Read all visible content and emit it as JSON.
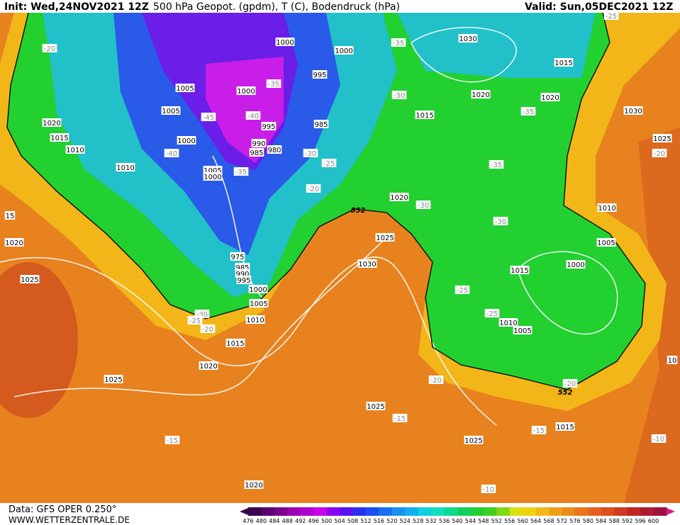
{
  "header": {
    "init": "Init: Wed,24NOV2021 12Z",
    "title": "500 hPa Geopot. (gpdm), T (C), Bodendruck (hPa)",
    "valid": "Valid: Sun,05DEC2021 12Z"
  },
  "map": {
    "labels": [
      "-20",
      "1000",
      "1000",
      "-35",
      "1030",
      "1015",
      "-25",
      "1005",
      "1000",
      "-35",
      "995",
      "-30",
      "1020",
      "1020",
      "-35",
      "1030",
      "1005",
      "-45",
      "-40",
      "1015",
      "995",
      "985",
      "1020",
      "1015",
      "1010",
      "1000",
      "990",
      "985",
      "980",
      "-40",
      "-30",
      "1025",
      "-20",
      "1010",
      "1005",
      "1000",
      "-35",
      "-25",
      "-35",
      "-20",
      "15",
      "1020",
      "-30",
      "552",
      "1010",
      "1020",
      "1025",
      "-30",
      "1005",
      "975",
      "985",
      "990",
      "995",
      "1030",
      "1000",
      "1015",
      "1025",
      "1000",
      "-25",
      "1005",
      "-30",
      "-25",
      "-20",
      "1010",
      "-25",
      "1010",
      "1005",
      "1015",
      "1020",
      "1025",
      "-20",
      "-20",
      "552",
      "10",
      "1025",
      "-15",
      "-15",
      "1015",
      "-15",
      "1025",
      "-10",
      "-10",
      "1020"
    ]
  },
  "footer": {
    "source": "Data: GFS OPER 0.250°",
    "url": "WWW.WETTERZENTRALE.DE"
  },
  "legend": {
    "values": [
      476,
      480,
      484,
      488,
      492,
      496,
      500,
      504,
      508,
      512,
      516,
      520,
      524,
      528,
      532,
      536,
      540,
      544,
      548,
      552,
      556,
      560,
      564,
      568,
      572,
      576,
      580,
      584,
      588,
      592,
      596,
      600
    ]
  }
}
